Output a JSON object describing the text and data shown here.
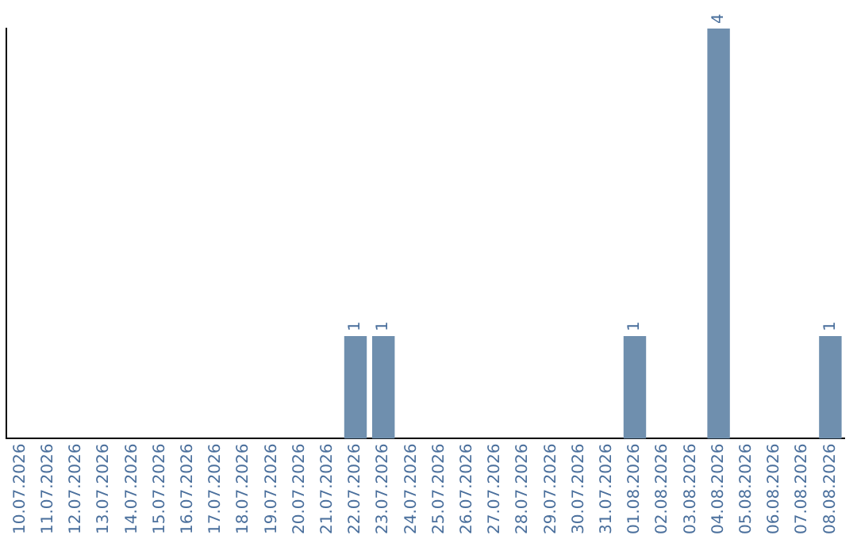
{
  "chart_data": {
    "type": "bar",
    "categories": [
      "10.07.2026",
      "11.07.2026",
      "12.07.2026",
      "13.07.2026",
      "14.07.2026",
      "15.07.2026",
      "16.07.2026",
      "17.07.2026",
      "18.07.2026",
      "19.07.2026",
      "20.07.2026",
      "21.07.2026",
      "22.07.2026",
      "23.07.2026",
      "24.07.2026",
      "25.07.2026",
      "26.07.2026",
      "27.07.2026",
      "28.07.2026",
      "29.07.2026",
      "30.07.2026",
      "31.07.2026",
      "01.08.2026",
      "02.08.2026",
      "03.08.2026",
      "04.08.2026",
      "05.08.2026",
      "06.08.2026",
      "07.08.2026",
      "08.08.2026"
    ],
    "values": [
      null,
      null,
      null,
      null,
      null,
      null,
      null,
      null,
      null,
      null,
      null,
      null,
      1,
      1,
      null,
      null,
      null,
      null,
      null,
      null,
      null,
      null,
      1,
      null,
      null,
      4,
      null,
      null,
      null,
      1
    ],
    "value_labels": [
      null,
      null,
      null,
      null,
      null,
      null,
      null,
      null,
      null,
      null,
      null,
      null,
      "1",
      "1",
      null,
      null,
      null,
      null,
      null,
      null,
      null,
      null,
      "1",
      null,
      null,
      "4",
      null,
      null,
      null,
      "1"
    ],
    "color": "#6f8fae",
    "grid": false,
    "legend": false
  }
}
